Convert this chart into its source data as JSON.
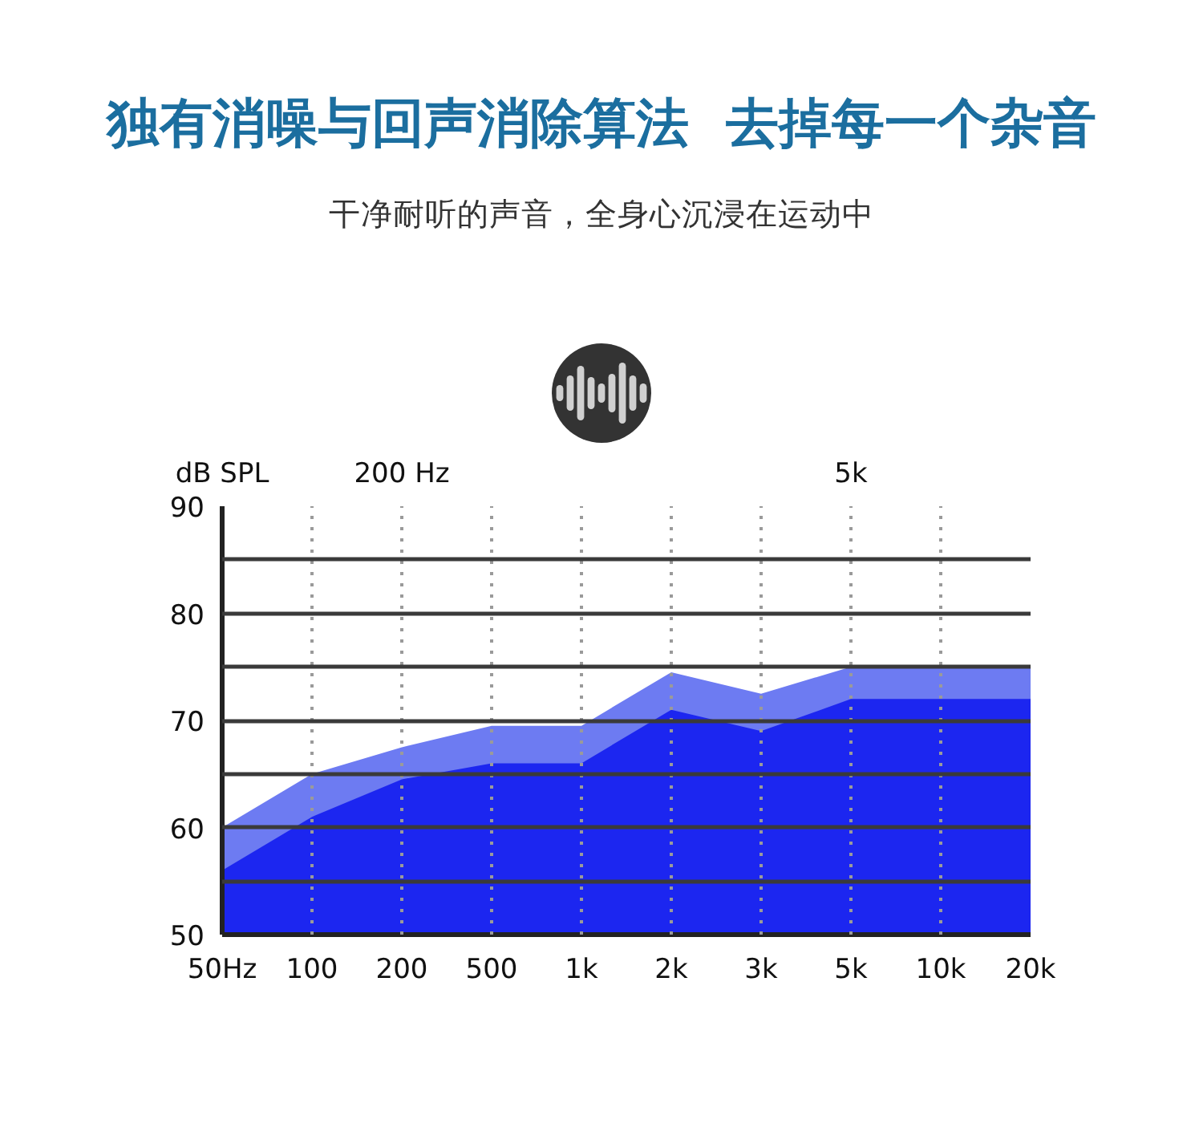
{
  "chart_data": {
    "type": "area",
    "title": "独有消噪与回声消除算法  去掉每一个杂音",
    "subtitle": "干净耐听的声音，全身心沉浸在运动中",
    "ylabel": "dB SPL",
    "categories": [
      "50Hz",
      "100",
      "200",
      "500",
      "1k",
      "2k",
      "3k",
      "5k",
      "10k",
      "20k"
    ],
    "series": [
      {
        "color": "#6d7bf2",
        "values": [
          60,
          65,
          67.5,
          69.5,
          69.5,
          74.5,
          72.5,
          75,
          75,
          75
        ]
      },
      {
        "color": "#1c26f0",
        "values": [
          56,
          61,
          64.5,
          66,
          66,
          71,
          69,
          72,
          72,
          72
        ]
      }
    ],
    "ylim": [
      50,
      90
    ],
    "yticks": [
      50,
      {
        "value": 55,
        "label": null
      },
      60,
      {
        "value": 65,
        "label": null
      },
      70,
      {
        "value": 75,
        "label": null
      },
      80,
      {
        "value": 85,
        "label": null
      },
      90
    ],
    "annotations": [
      "200 Hz",
      "5k"
    ],
    "grid": true
  }
}
